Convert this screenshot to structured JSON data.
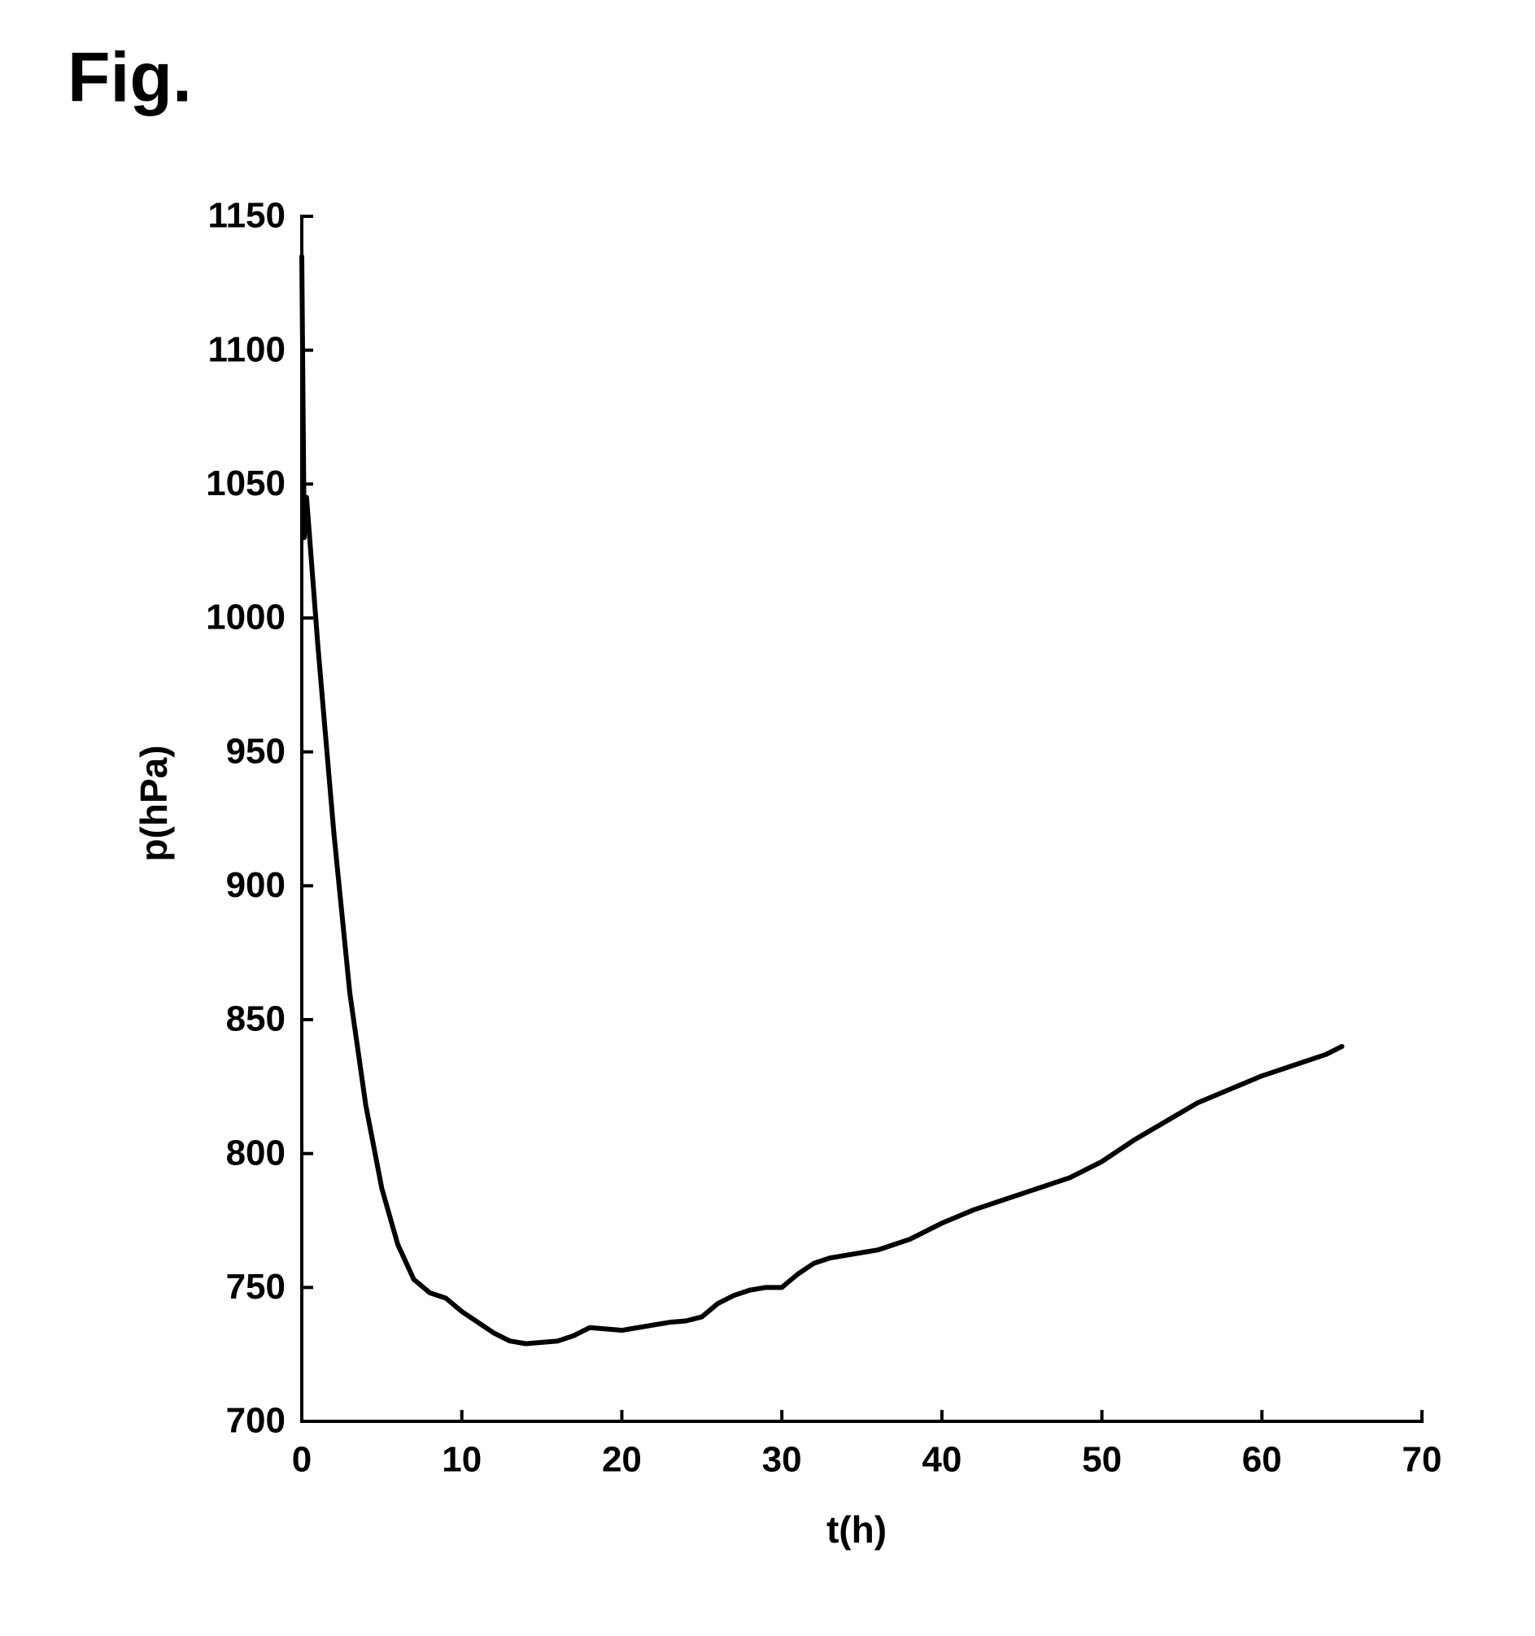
{
  "chart_data": {
    "type": "line",
    "figure_label": "Fig.",
    "x_label": "t(h)",
    "y_label": "p(hPa)",
    "x": [
      0,
      0.15,
      0.3,
      1,
      2,
      3,
      4,
      5,
      6,
      7,
      8,
      9,
      10,
      11,
      12,
      13,
      14,
      15,
      16,
      17,
      18,
      19,
      20,
      21,
      22,
      23,
      24,
      25,
      26,
      27,
      28,
      29,
      30,
      31,
      32,
      33,
      34,
      35,
      36,
      38,
      40,
      42,
      44,
      46,
      48,
      50,
      52,
      54,
      56,
      58,
      60,
      62,
      64,
      65
    ],
    "series": [
      {
        "color": "#000000",
        "values": [
          1135,
          1030,
          1045,
          990,
          920,
          860,
          818,
          787,
          766,
          753,
          748,
          746,
          741,
          737,
          733,
          730,
          729,
          729.5,
          730,
          732,
          735,
          734.5,
          734,
          735,
          736,
          737,
          737.5,
          739,
          744,
          747,
          749,
          750,
          750,
          755,
          759,
          761,
          762,
          763,
          764,
          768,
          774,
          779,
          783,
          787,
          791,
          797,
          805,
          812,
          819,
          824,
          829,
          833,
          837,
          840
        ]
      }
    ],
    "xlim": [
      0,
      70
    ],
    "xticks": [
      0,
      10,
      20,
      30,
      40,
      50,
      60,
      70
    ],
    "ylim": [
      700,
      1150
    ],
    "yticks": [
      700,
      750,
      800,
      850,
      900,
      950,
      1000,
      1050,
      1100,
      1150
    ],
    "grid": false
  }
}
